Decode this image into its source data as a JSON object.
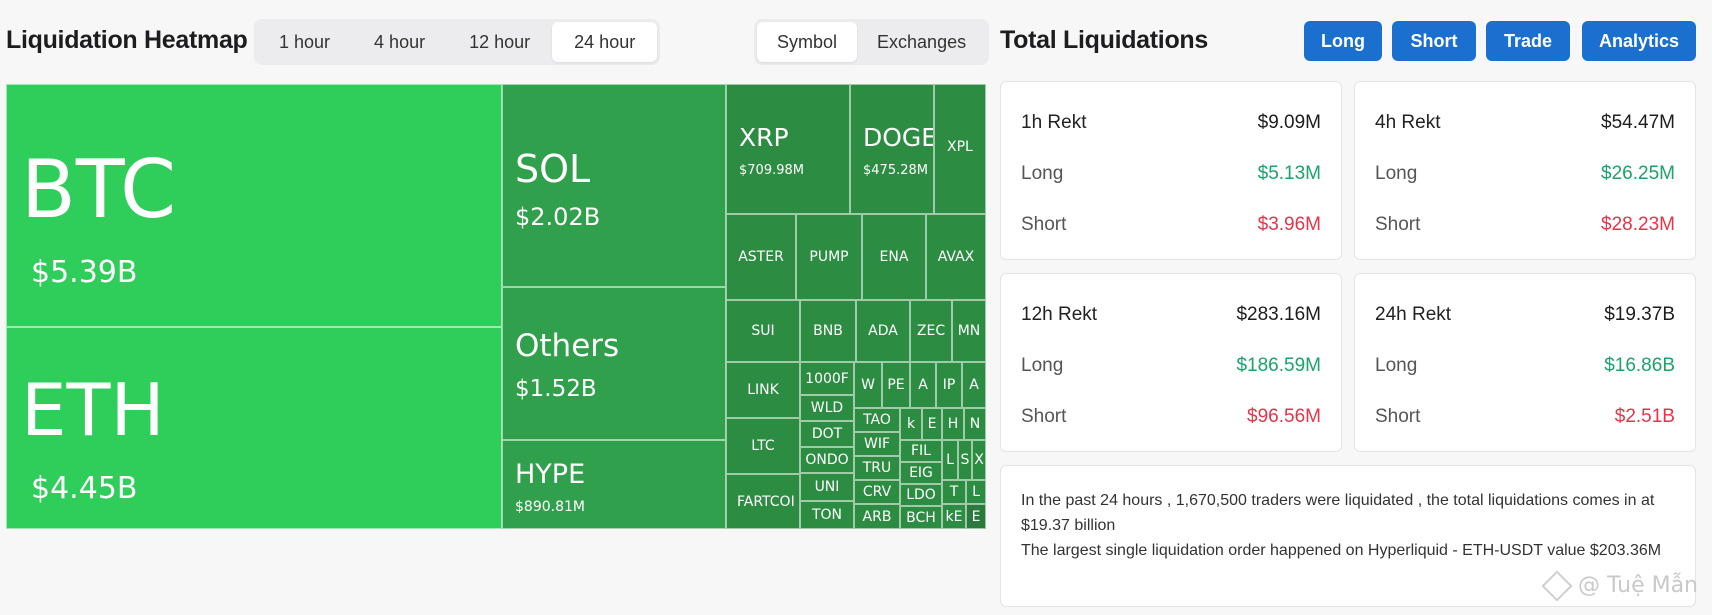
{
  "heatmap": {
    "title": "Liquidation Heatmap",
    "time_options": [
      "1 hour",
      "4 hour",
      "12 hour",
      "24 hour"
    ],
    "active_time": "24 hour",
    "view_options": [
      "Symbol",
      "Exchanges"
    ],
    "active_view": "Symbol",
    "tiles": {
      "btc": {
        "name": "BTC",
        "value": "$5.39B"
      },
      "eth": {
        "name": "ETH",
        "value": "$4.45B"
      },
      "sol": {
        "name": "SOL",
        "value": "$2.02B"
      },
      "others": {
        "name": "Others",
        "value": "$1.52B"
      },
      "hype": {
        "name": "HYPE",
        "value": "$890.81M"
      },
      "xrp": {
        "name": "XRP",
        "value": "$709.98M"
      },
      "doge": {
        "name": "DOGE",
        "value": "$475.28M"
      },
      "xpl": {
        "name": "XPL"
      },
      "small": [
        "ASTER",
        "PUMP",
        "ENA",
        "AVAX",
        "SUI",
        "BNB",
        "ADA",
        "ZEC",
        "MN",
        "LINK",
        "1000F",
        "W",
        "PE",
        "A",
        "IP",
        "A",
        "WLD",
        "DOT",
        "ONDO",
        "UNI",
        "TON",
        "TAO",
        "k",
        "E",
        "H",
        "N",
        "WIF",
        "TRU",
        "CRV",
        "ARB",
        "FIL",
        "EIG",
        "LDO",
        "BCH",
        "L",
        "S",
        "X",
        "T",
        "L",
        "kE",
        "E",
        "LTC",
        "FARTCOI"
      ]
    }
  },
  "totals": {
    "title": "Total Liquidations",
    "nav": [
      "Long",
      "Short",
      "Trade",
      "Analytics"
    ],
    "labels": {
      "long": "Long",
      "short": "Short"
    },
    "cards": [
      {
        "title": "1h Rekt",
        "total": "$9.09M",
        "long": "$5.13M",
        "short": "$3.96M"
      },
      {
        "title": "4h Rekt",
        "total": "$54.47M",
        "long": "$26.25M",
        "short": "$28.23M"
      },
      {
        "title": "12h Rekt",
        "total": "$283.16M",
        "long": "$186.59M",
        "short": "$96.56M"
      },
      {
        "title": "24h Rekt",
        "total": "$19.37B",
        "long": "$16.86B",
        "short": "$2.51B"
      }
    ],
    "summary_line1": "In the past 24 hours , 1,670,500 traders were liquidated , the total liquidations comes in at $19.37 billion",
    "summary_line2": "The largest single liquidation order happened on Hyperliquid - ETH-USDT value $203.36M"
  },
  "watermark": "@ Tuệ Mẫn",
  "colors": {
    "accent": "#1a6fcf",
    "long": "#1aa36a",
    "short": "#e5344a",
    "tile_bright": "#2fcd5a",
    "tile_mid": "#31a04c"
  }
}
